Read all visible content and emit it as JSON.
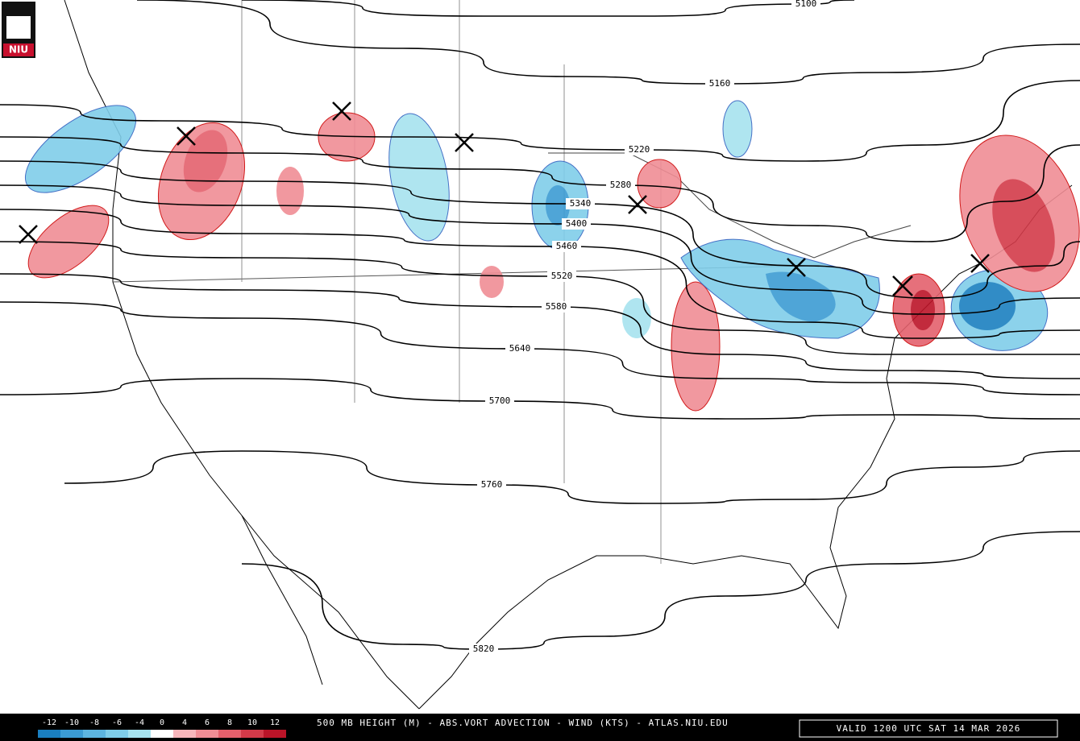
{
  "header": {
    "logo": "NIU"
  },
  "heights": {
    "labels": [
      5100,
      5160,
      5220,
      5280,
      5340,
      5400,
      5460,
      5520,
      5580,
      5640,
      5700,
      5760,
      5820
    ]
  },
  "colorbar": {
    "ticks": [
      -12,
      -10,
      -8,
      -6,
      -4,
      0,
      4,
      6,
      8,
      10,
      12
    ],
    "colors": [
      "#1a7fc0",
      "#3b9bd3",
      "#5db5e0",
      "#7fcde9",
      "#a6e3ef",
      "#ffffff",
      "#f7b6bb",
      "#f08d95",
      "#e4606c",
      "#d33a49",
      "#bb1428"
    ]
  },
  "footer": {
    "title": "500 MB HEIGHT (M) - ABS.VORT ADVECTION - WIND (KTS) - ATLAS.NIU.EDU",
    "valid": "VALID 1200 UTC SAT 14 MAR 2026"
  }
}
